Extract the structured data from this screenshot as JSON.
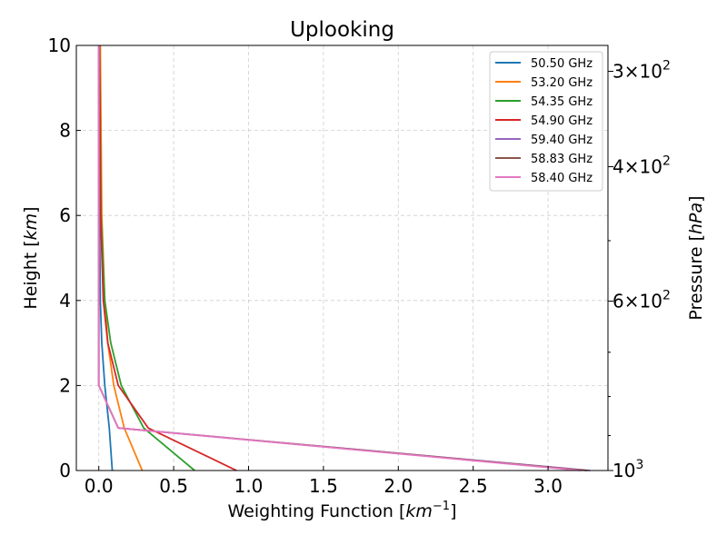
{
  "chart_data": {
    "type": "line",
    "title": "Uplooking",
    "xlabel_text": "Weighting Function [",
    "xlabel_unit": "km",
    "xlabel_exp": "−1",
    "xlabel_close": "]",
    "ylabel_text": "Height [",
    "ylabel_unit": "km",
    "ylabel_close": "]",
    "y2label_text": "Pressure [",
    "y2label_unit": "hPa",
    "y2label_close": "]",
    "xlim": [
      -0.15,
      3.4
    ],
    "ylim": [
      0,
      10
    ],
    "xticks": [
      0.0,
      0.5,
      1.0,
      1.5,
      2.0,
      2.5,
      3.0
    ],
    "xtick_labels": [
      "0.0",
      "0.5",
      "1.0",
      "1.5",
      "2.0",
      "2.5",
      "3.0"
    ],
    "yticks": [
      0,
      2,
      4,
      6,
      8,
      10
    ],
    "ytick_labels": [
      "0",
      "2",
      "4",
      "6",
      "8",
      "10"
    ],
    "y2_major_ticks": [
      {
        "pressure": 300,
        "mantissa": "3",
        "exponent": "2"
      },
      {
        "pressure": 400,
        "mantissa": "4",
        "exponent": "2"
      },
      {
        "pressure": 600,
        "mantissa": "6",
        "exponent": "2"
      },
      {
        "pressure": 1000,
        "mantissa": "10",
        "exponent": "3"
      }
    ],
    "y2_minor_ticks": [
      500,
      700,
      800,
      900
    ],
    "grid": true,
    "legend_position": "top-right",
    "series": [
      {
        "name": "50.50 GHz",
        "color": "#1f77b4",
        "x": [
          0.09,
          0.07,
          0.04,
          0.02,
          0.01,
          0.005,
          0.003
        ],
        "y": [
          0,
          1,
          2,
          3,
          4,
          6,
          10
        ]
      },
      {
        "name": "53.20 GHz",
        "color": "#ff7f0e",
        "x": [
          0.29,
          0.17,
          0.1,
          0.06,
          0.04,
          0.02,
          0.01
        ],
        "y": [
          0,
          1,
          2,
          3,
          4,
          6,
          10
        ]
      },
      {
        "name": "54.35 GHz",
        "color": "#2ca02c",
        "x": [
          0.64,
          0.3,
          0.15,
          0.08,
          0.04,
          0.015,
          0.005
        ],
        "y": [
          0,
          1,
          2,
          3,
          4,
          6,
          10
        ]
      },
      {
        "name": "54.90 GHz",
        "color": "#d62728",
        "x": [
          0.92,
          0.33,
          0.13,
          0.06,
          0.03,
          0.012,
          0.004
        ],
        "y": [
          0,
          1,
          2,
          3,
          4,
          6,
          10
        ]
      },
      {
        "name": "59.40 GHz",
        "color": "#9467bd",
        "x": [
          3.28,
          0.13,
          0.0,
          0.0,
          0.0,
          0.0,
          0.0
        ],
        "y": [
          0,
          1,
          2,
          3,
          4,
          6,
          10
        ]
      },
      {
        "name": "58.83 GHz",
        "color": "#8c564b",
        "x": [
          3.26,
          0.13,
          0.0,
          0.0,
          0.0,
          0.0,
          0.0
        ],
        "y": [
          0,
          1,
          2,
          3,
          4,
          6,
          10
        ]
      },
      {
        "name": "58.40 GHz",
        "color": "#e377c2",
        "x": [
          3.22,
          0.13,
          0.0,
          0.0,
          0.0,
          0.0,
          0.0
        ],
        "y": [
          0,
          1,
          2,
          3,
          4,
          6,
          10
        ]
      }
    ]
  }
}
